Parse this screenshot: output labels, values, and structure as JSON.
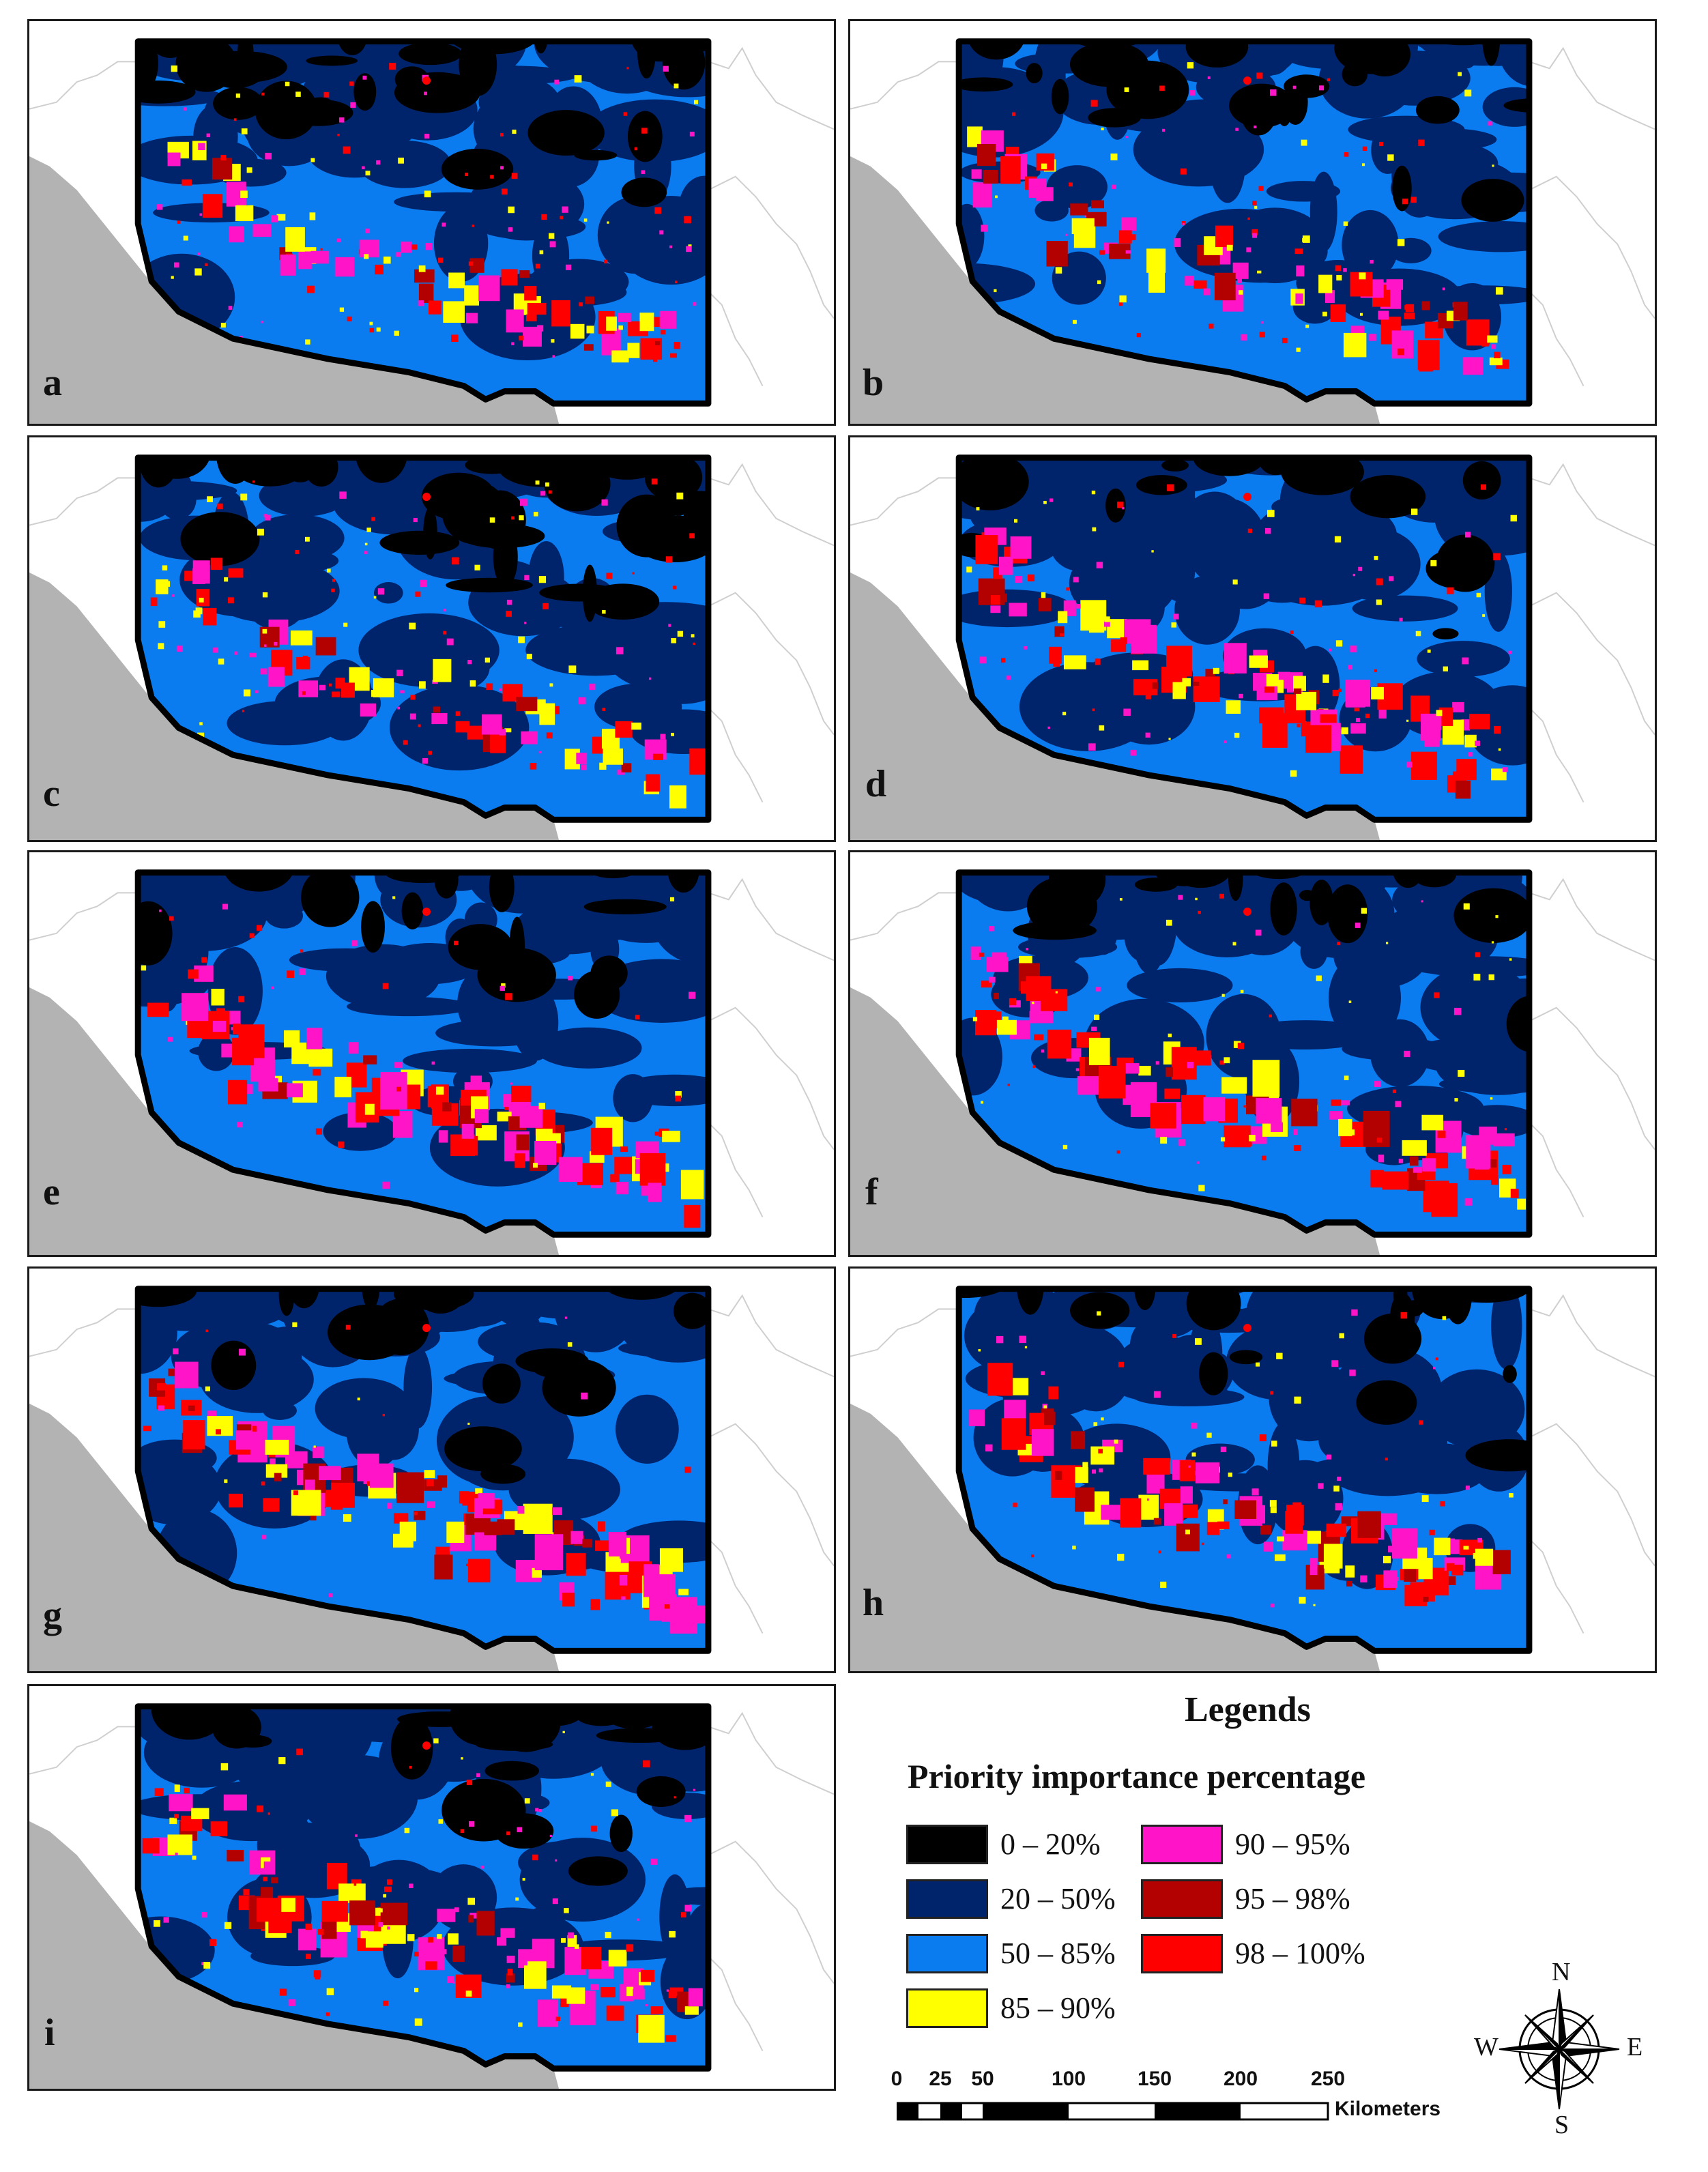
{
  "panels": [
    {
      "label": "a"
    },
    {
      "label": "b"
    },
    {
      "label": "c"
    },
    {
      "label": "d"
    },
    {
      "label": "e"
    },
    {
      "label": "f"
    },
    {
      "label": "g"
    },
    {
      "label": "h"
    },
    {
      "label": "i"
    }
  ],
  "legend": {
    "title": "Legends",
    "subtitle": "Priority importance percentage",
    "classes": [
      {
        "label": "0 – 20%",
        "color": "#000000"
      },
      {
        "label": "20 – 50%",
        "color": "#00246b"
      },
      {
        "label": "50 – 85%",
        "color": "#0a7cf0"
      },
      {
        "label": "85 – 90%",
        "color": "#ffff00"
      },
      {
        "label": "90 – 95%",
        "color": "#ff14c8"
      },
      {
        "label": "95 – 98%",
        "color": "#b30000"
      },
      {
        "label": "98 – 100%",
        "color": "#ff0000"
      }
    ]
  },
  "scale_bar": {
    "ticks": [
      "0",
      "25",
      "50",
      "100",
      "150",
      "200",
      "250"
    ],
    "unit": "Kilometers"
  },
  "compass": {
    "n": "N",
    "s": "S",
    "e": "E",
    "w": "W"
  },
  "colors": {
    "sea": "#b3b3b3",
    "boundary": "#cfcfcf",
    "outline": "#000000"
  }
}
